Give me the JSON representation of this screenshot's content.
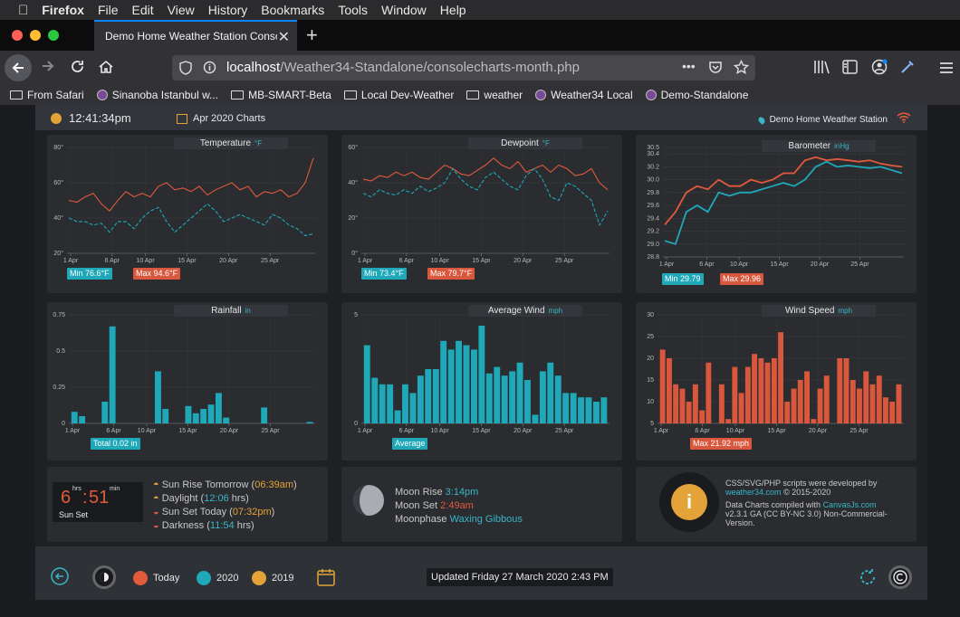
{
  "menubar": {
    "apple": "",
    "app": "Firefox",
    "items": [
      "File",
      "Edit",
      "View",
      "History",
      "Bookmarks",
      "Tools",
      "Window",
      "Help"
    ]
  },
  "browser": {
    "tab_title": "Demo Home Weather Station Conso",
    "url_host": "localhost",
    "url_path": "/Weather34-Standalone/consolecharts-month.php",
    "url_dots": "•••",
    "bookmarks": [
      {
        "label": "From Safari",
        "icon": "folder-icon"
      },
      {
        "label": "Sinanoba Istanbul w...",
        "icon": "globe-icon"
      },
      {
        "label": "MB-SMART-Beta",
        "icon": "folder-icon"
      },
      {
        "label": "Local Dev-Weather",
        "icon": "folder-icon"
      },
      {
        "label": "weather",
        "icon": "folder-icon"
      },
      {
        "label": "Weather34 Local",
        "icon": "globe-icon"
      },
      {
        "label": "Demo-Standalone",
        "icon": "globe-icon"
      }
    ]
  },
  "header": {
    "time": "12:41:34pm",
    "charts_title": "Apr 2020 Charts",
    "station": "Demo Home Weather Station"
  },
  "x_ticks": [
    "1 Apr",
    "6 Apr",
    "10 Apr",
    "15 Apr",
    "20 Apr",
    "25 Apr"
  ],
  "panels": {
    "temperature": {
      "title": "Temperature",
      "unit": "°F",
      "min_label": "Min 76.6°F",
      "max_label": "Max 94.6°F",
      "yticks": [
        "80°",
        "60°",
        "40°",
        "20°"
      ]
    },
    "dewpoint": {
      "title": "Dewpoint",
      "unit": "°F",
      "min_label": "Min 73.4°F",
      "max_label": "Max 79.7°F",
      "yticks": [
        "60°",
        "40°",
        "20°",
        "0°"
      ]
    },
    "barometer": {
      "title": "Barometer",
      "unit": "inHg",
      "min_label": "Min 29.79",
      "max_label": "Max 29.96",
      "yticks": [
        "30.5",
        "30.4",
        "30.2",
        "30.0",
        "29.8",
        "29.6",
        "29.4",
        "29.2",
        "29.0",
        "28.8"
      ]
    },
    "rainfall": {
      "title": "Rainfall",
      "unit": "in",
      "total_label": "Total 0.02 in",
      "yticks": [
        "0.75",
        "0.5",
        "0.25",
        "0"
      ]
    },
    "avgwind": {
      "title": "Average Wind",
      "unit": "mph",
      "avg_label": "Average",
      "yticks": [
        "5",
        "0"
      ]
    },
    "windspeed": {
      "title": "Wind Speed",
      "unit": "mph",
      "max_label": "Max 21.92 mph",
      "yticks": [
        "30",
        "25",
        "20",
        "15",
        "10",
        "5"
      ]
    }
  },
  "chart_data": [
    {
      "type": "line",
      "title": "Temperature",
      "ylim": [
        20,
        80
      ],
      "series": [
        {
          "name": "Max",
          "color": "#e05a3b",
          "values": [
            50,
            49,
            52,
            54,
            48,
            44,
            50,
            55,
            52,
            54,
            52,
            58,
            60,
            56,
            57,
            55,
            58,
            53,
            56,
            58,
            60,
            56,
            58,
            52,
            55,
            54,
            56,
            52,
            54,
            60,
            74
          ]
        },
        {
          "name": "Min",
          "color": "#1ea8b8",
          "values": [
            40,
            38,
            38,
            36,
            37,
            32,
            38,
            38,
            34,
            40,
            44,
            46,
            38,
            32,
            36,
            40,
            44,
            48,
            44,
            38,
            40,
            42,
            40,
            38,
            36,
            42,
            40,
            36,
            34,
            30,
            31
          ]
        }
      ]
    },
    {
      "type": "line",
      "title": "Dewpoint",
      "ylim": [
        0,
        60
      ],
      "series": [
        {
          "name": "Max",
          "color": "#e05a3b",
          "values": [
            42,
            41,
            44,
            43,
            46,
            44,
            46,
            43,
            42,
            46,
            50,
            48,
            45,
            44,
            47,
            50,
            54,
            50,
            48,
            52,
            46,
            48,
            50,
            46,
            50,
            48,
            44,
            45,
            48,
            40,
            36
          ]
        },
        {
          "name": "Min",
          "color": "#1ea8b8",
          "values": [
            34,
            32,
            36,
            34,
            33,
            36,
            34,
            38,
            35,
            37,
            40,
            48,
            42,
            38,
            36,
            43,
            46,
            42,
            38,
            36,
            44,
            48,
            42,
            32,
            30,
            40,
            38,
            34,
            30,
            16,
            24
          ]
        }
      ]
    },
    {
      "type": "line",
      "title": "Barometer",
      "ylim": [
        28.8,
        30.5
      ],
      "series": [
        {
          "name": "Max",
          "color": "#e05a3b",
          "values": [
            29.3,
            29.5,
            29.8,
            29.9,
            29.85,
            30.0,
            29.9,
            29.9,
            30.0,
            29.95,
            30.0,
            30.1,
            30.1,
            30.3,
            30.35,
            30.3,
            30.32,
            30.3,
            30.28,
            30.3,
            30.25,
            30.22,
            30.2
          ]
        },
        {
          "name": "Min",
          "color": "#1ea8b8",
          "values": [
            29.05,
            29.0,
            29.5,
            29.6,
            29.5,
            29.8,
            29.75,
            29.8,
            29.8,
            29.85,
            29.9,
            29.95,
            29.9,
            30.0,
            30.2,
            30.28,
            30.2,
            30.22,
            30.2,
            30.18,
            30.2,
            30.15,
            30.1
          ]
        }
      ]
    },
    {
      "type": "bar",
      "title": "Rainfall",
      "ylim": [
        0,
        0.75
      ],
      "values": [
        0.08,
        0.05,
        0,
        0,
        0.15,
        0.67,
        0,
        0,
        0,
        0,
        0,
        0.36,
        0.1,
        0,
        0,
        0.12,
        0.07,
        0.1,
        0.13,
        0.21,
        0.04,
        0,
        0,
        0,
        0,
        0.11,
        0,
        0,
        0,
        0,
        0,
        0.01
      ]
    },
    {
      "type": "bar",
      "title": "Average Wind",
      "ylim": [
        0,
        5
      ],
      "values": [
        3.6,
        2.1,
        1.8,
        1.8,
        0.6,
        1.8,
        1.4,
        2.2,
        2.5,
        2.5,
        3.8,
        3.4,
        3.8,
        3.6,
        3.4,
        4.5,
        2.3,
        2.6,
        2.2,
        2.4,
        2.8,
        2.0,
        0.4,
        2.4,
        2.8,
        2.2,
        1.4,
        1.4,
        1.2,
        1.2,
        1.0,
        1.2
      ]
    },
    {
      "type": "bar",
      "title": "Wind Speed",
      "ylim": [
        5,
        30
      ],
      "values": [
        22,
        20,
        14,
        13,
        10,
        14,
        8,
        19,
        5,
        14,
        6,
        18,
        12,
        18,
        21,
        20,
        19,
        20,
        26,
        10,
        13,
        15,
        17,
        6,
        13,
        16,
        5,
        20,
        20,
        15,
        13,
        17,
        14,
        16,
        11,
        10,
        14
      ]
    }
  ],
  "sun": {
    "hours": "6",
    "minutes": "51",
    "hrs_label": "hrs",
    "min_label": "min",
    "caption": "Sun Set",
    "rise_label": "Sun Rise Tomorrow",
    "rise_value": "06:39am",
    "day_label": "Daylight",
    "day_value": "12:06",
    "day_unit": "hrs",
    "set_label": "Sun Set Today",
    "set_value": "07:32pm",
    "dark_label": "Darkness",
    "dark_value": "11:54",
    "dark_unit": "hrs"
  },
  "moon": {
    "rise_label": "Moon Rise",
    "rise_value": "3:14pm",
    "set_label": "Moon Set",
    "set_value": "2:49am",
    "phase_label": "Moonphase",
    "phase_value": "Waxing Gibbous"
  },
  "info": {
    "line1": "CSS/SVG/PHP scripts were developed by",
    "link1": "weather34.com",
    "copy1": "©  2015-2020",
    "line2": "Data Charts compiled with",
    "link2": "CanvasJs.com",
    "line3": "v2.3.1 GA (CC BY-NC 3.0) Non-Commercial-",
    "line4": "Version."
  },
  "footer": {
    "today": "Today",
    "y2020": "2020",
    "y2019": "2019",
    "updated": "Updated Friday 27 March 2020 2:43 PM",
    "colors": {
      "today": "#e05a3b",
      "y2020": "#1ea8b8",
      "y2019": "#e4a339"
    }
  }
}
